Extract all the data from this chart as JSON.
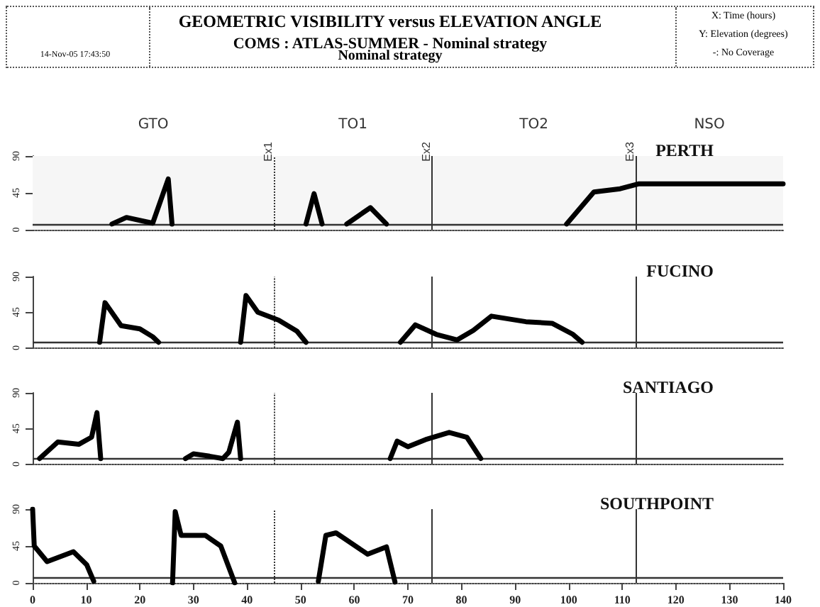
{
  "chart_data": [
    {
      "type": "line",
      "title": "PERTH",
      "subtitle": "COMS : ATLAS-SUMMER - Nominal strategy",
      "annotations": [
        "GEOMETRIC VISIBILITY versus ELEVATION ANGLE",
        "Nominal strategy",
        "14-Nov-05 17:43:50",
        "X: Time (hours)",
        "Y: Elevation (degrees)",
        "-: No Coverage"
      ],
      "x": [
        14.8,
        17.5,
        22.4,
        25.3,
        26,
        null,
        51,
        52.5,
        54,
        null,
        58.6,
        63,
        66,
        null,
        99.6,
        104.7,
        109.6,
        113,
        140
      ],
      "series": [
        {
          "color": "#000000",
          "values": [
            7,
            15,
            8,
            62,
            7,
            null,
            7,
            44,
            7,
            null,
            7,
            27,
            7,
            null,
            7,
            46,
            50,
            56,
            56
          ]
        }
      ],
      "xlim": [
        0,
        140
      ],
      "ylim": [
        0,
        90
      ],
      "yticks": [
        0,
        45,
        90
      ],
      "xticks": [
        0,
        10,
        20,
        30,
        40,
        50,
        60,
        70,
        80,
        90,
        100,
        110,
        120,
        130,
        140
      ],
      "tick_labels": "y",
      "marker": "none",
      "line_style": "solid",
      "grid": false,
      "ref_lines": [
        {
          "axis": "y",
          "value": 7,
          "line_style": "solid"
        },
        {
          "axis": "x",
          "value": 45,
          "label": "Ex1",
          "line_style": "dotted"
        },
        {
          "axis": "x",
          "value": 74.5,
          "label": "Ex2",
          "line_style": "solid"
        },
        {
          "axis": "x",
          "value": 112.5,
          "label": "Ex3",
          "line_style": "solid"
        }
      ],
      "bands": [
        {
          "axis": "x",
          "from": 0,
          "to": 45,
          "label": "GTO",
          "color": "#f6f6f6"
        },
        {
          "axis": "x",
          "from": 45,
          "to": 74.5,
          "label": "TO1",
          "color": "#f6f6f6"
        },
        {
          "axis": "x",
          "from": 74.5,
          "to": 112.5,
          "label": "TO2",
          "color": "#f6f6f6"
        },
        {
          "axis": "x",
          "from": 112.5,
          "to": 140,
          "label": "NSO",
          "color": "#f6f6f6"
        }
      ]
    },
    {
      "type": "line",
      "title": "FUCINO",
      "x": [
        12.5,
        13.5,
        16.5,
        20,
        22.4,
        23.5,
        null,
        38.8,
        39.8,
        42,
        45.9,
        49.3,
        51,
        null,
        68.6,
        71.4,
        75.3,
        79.2,
        82.2,
        85.6,
        92,
        96.9,
        100.8,
        102.5
      ],
      "series": [
        {
          "color": "#000000",
          "values": [
            7,
            57,
            28,
            24,
            14,
            7,
            null,
            7,
            66,
            45,
            35,
            21,
            7,
            null,
            7,
            29,
            17,
            10,
            22,
            40,
            33,
            31,
            17,
            7
          ]
        }
      ],
      "xlim": [
        0,
        140
      ],
      "ylim": [
        0,
        90
      ],
      "yticks": [
        0,
        45,
        90
      ],
      "xticks": [
        0,
        10,
        20,
        30,
        40,
        50,
        60,
        70,
        80,
        90,
        100,
        110,
        120,
        130,
        140
      ],
      "tick_labels": "y",
      "marker": "none",
      "line_style": "solid",
      "grid": false,
      "ref_lines": [
        {
          "axis": "y",
          "value": 7,
          "line_style": "solid"
        },
        {
          "axis": "x",
          "value": 45,
          "line_style": "dotted"
        },
        {
          "axis": "x",
          "value": 74.5,
          "line_style": "solid"
        },
        {
          "axis": "x",
          "value": 112.5,
          "line_style": "solid"
        }
      ]
    },
    {
      "type": "line",
      "title": "SANTIAGO",
      "x": [
        1.3,
        4.7,
        8.6,
        11,
        12,
        12.7,
        null,
        28.5,
        30,
        33,
        35.5,
        36.6,
        38.2,
        38.8,
        null,
        66.7,
        68,
        70,
        73.3,
        77.7,
        81,
        83.6
      ],
      "series": [
        {
          "color": "#000000",
          "values": [
            7,
            28,
            25,
            34,
            65,
            7,
            null,
            7,
            13,
            10,
            7,
            15,
            53,
            7,
            null,
            7,
            29,
            22,
            31,
            40,
            34,
            7
          ]
        }
      ],
      "xlim": [
        0,
        140
      ],
      "ylim": [
        0,
        90
      ],
      "yticks": [
        0,
        45,
        90
      ],
      "xticks": [
        0,
        10,
        20,
        30,
        40,
        50,
        60,
        70,
        80,
        90,
        100,
        110,
        120,
        130,
        140
      ],
      "tick_labels": "y",
      "marker": "none",
      "line_style": "solid",
      "grid": false,
      "ref_lines": [
        {
          "axis": "y",
          "value": 7,
          "line_style": "solid"
        },
        {
          "axis": "x",
          "value": 45,
          "line_style": "dotted"
        },
        {
          "axis": "x",
          "value": 74.5,
          "line_style": "solid"
        },
        {
          "axis": "x",
          "value": 112.5,
          "line_style": "solid"
        }
      ]
    },
    {
      "type": "line",
      "title": "SOUTHPOINT",
      "x": [
        0,
        0.3,
        2.7,
        7.6,
        10.1,
        11.4,
        null,
        26.1,
        26.6,
        27.7,
        32.2,
        35.1,
        37.7,
        null,
        53.3,
        54.7,
        56.6,
        62.5,
        66,
        67.6
      ],
      "series": [
        {
          "color": "#000000",
          "values": [
            90,
            45,
            26,
            38,
            22,
            2,
            null,
            0,
            87,
            58,
            58,
            45,
            0,
            null,
            2,
            58,
            61,
            35,
            44,
            1
          ]
        }
      ],
      "xlim": [
        0,
        140
      ],
      "ylim": [
        0,
        90
      ],
      "yticks": [
        0,
        45,
        90
      ],
      "xticks": [
        0,
        10,
        20,
        30,
        40,
        50,
        60,
        70,
        80,
        90,
        100,
        110,
        120,
        130,
        140
      ],
      "marker": "none",
      "line_style": "solid",
      "grid": false,
      "ref_lines": [
        {
          "axis": "y",
          "value": 7,
          "line_style": "solid"
        },
        {
          "axis": "x",
          "value": 45,
          "line_style": "dotted"
        },
        {
          "axis": "x",
          "value": 74.5,
          "line_style": "solid"
        },
        {
          "axis": "x",
          "value": 112.5,
          "line_style": "solid"
        }
      ]
    }
  ]
}
